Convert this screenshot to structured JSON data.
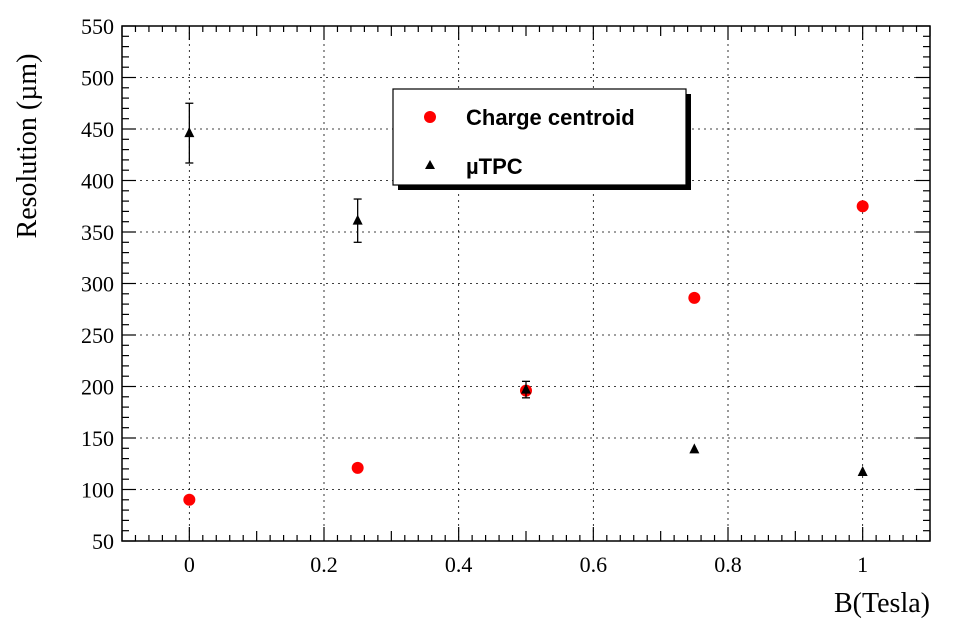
{
  "chart_data": {
    "type": "scatter",
    "xlabel": "B(Tesla)",
    "ylabel": "Resolution (µm)",
    "xlim": [
      -0.1,
      1.1
    ],
    "ylim": [
      50,
      550
    ],
    "x_ticks": [
      0,
      0.2,
      0.4,
      0.6,
      0.8,
      1.0
    ],
    "x_tick_labels": [
      "0",
      "0.2",
      "0.4",
      "0.6",
      "0.8",
      "1"
    ],
    "y_ticks": [
      50,
      100,
      150,
      200,
      250,
      300,
      350,
      400,
      450,
      500,
      550
    ],
    "y_tick_labels": [
      "50",
      "100",
      "150",
      "200",
      "250",
      "300",
      "350",
      "400",
      "450",
      "500",
      "550"
    ],
    "grid": true,
    "legend_position": "top-center",
    "series": [
      {
        "name": "Charge centroid",
        "marker": "circle",
        "color": "#ff0000",
        "points": [
          {
            "x": 0,
            "y": 90
          },
          {
            "x": 0.25,
            "y": 121
          },
          {
            "x": 0.5,
            "y": 196
          },
          {
            "x": 0.75,
            "y": 286
          },
          {
            "x": 1.0,
            "y": 375
          }
        ]
      },
      {
        "name": "µTPC",
        "marker": "triangle",
        "color": "#000000",
        "points": [
          {
            "x": 0,
            "y": 446,
            "err": 29
          },
          {
            "x": 0.25,
            "y": 361,
            "err": 21
          },
          {
            "x": 0.5,
            "y": 197,
            "err": 8
          },
          {
            "x": 0.75,
            "y": 139,
            "err": 0
          },
          {
            "x": 1.0,
            "y": 117,
            "err": 0
          }
        ]
      }
    ]
  }
}
